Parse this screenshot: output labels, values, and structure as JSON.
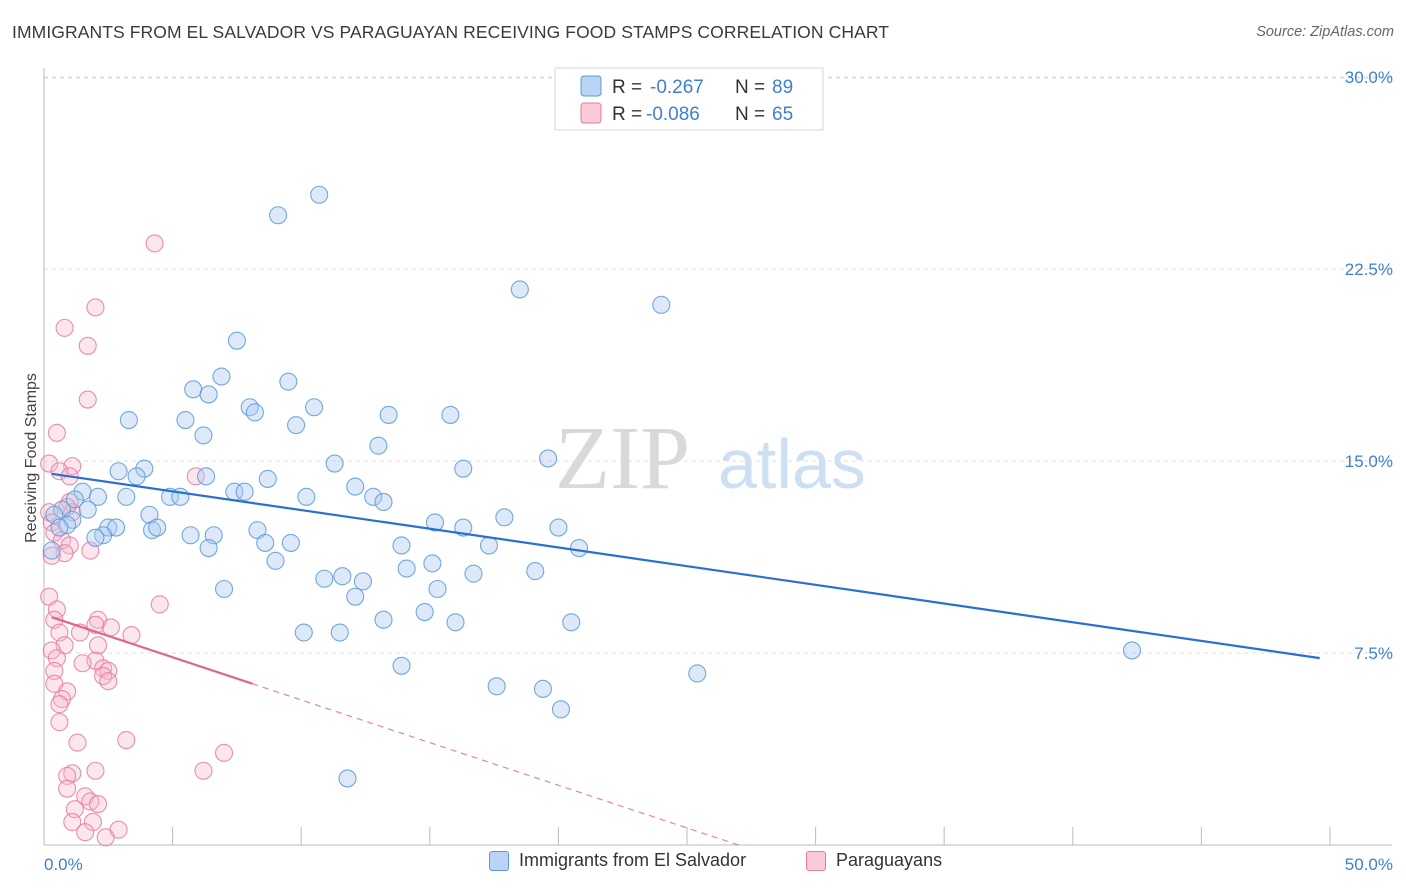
{
  "header": {
    "title": "IMMIGRANTS FROM EL SALVADOR VS PARAGUAYAN RECEIVING FOOD STAMPS CORRELATION CHART",
    "source": "Source: ZipAtlas.com"
  },
  "watermark": {
    "zip": "ZIP",
    "atlas": "atlas"
  },
  "colors": {
    "blue": "#5b9bd5",
    "blue_fill": "#a9c9f0",
    "blue_line": "#2b6fd0",
    "pink": "#e87aa0",
    "pink_fill": "#f6b6cb",
    "pink_line": "#e0648f",
    "tick_label": "#3f7fd0",
    "grid": "#dddddd"
  },
  "legend": {
    "series": [
      {
        "r_label": "R =",
        "r_value": "-0.267",
        "n_label": "N =",
        "n_value": "89"
      },
      {
        "r_label": "R =",
        "r_value": "-0.086",
        "n_label": "N =",
        "n_value": "65"
      }
    ]
  },
  "bottom_legend": {
    "items": [
      {
        "label": "Immigrants from El Salvador"
      },
      {
        "label": "Paraguayans"
      }
    ]
  },
  "chart_data": {
    "type": "scatter",
    "title": "IMMIGRANTS FROM EL SALVADOR VS PARAGUAYAN RECEIVING FOOD STAMPS CORRELATION CHART",
    "xlabel": "",
    "ylabel": "Receiving Food Stamps",
    "xlim": [
      0,
      50
    ],
    "ylim": [
      0,
      31
    ],
    "x_tick_labels": [
      "0.0%",
      "50.0%"
    ],
    "y_ticks": [
      7.5,
      15.0,
      22.5,
      30.0
    ],
    "y_tick_labels": [
      "7.5%",
      "15.0%",
      "22.5%",
      "30.0%"
    ],
    "grid": true,
    "series": [
      {
        "name": "Immigrants from El Salvador",
        "r": -0.267,
        "n": 89,
        "trend": {
          "x": [
            0.3,
            49.6
          ],
          "y": [
            14.5,
            7.3
          ],
          "dashed_to": null
        },
        "points": [
          [
            10.7,
            25.4
          ],
          [
            9.1,
            24.6
          ],
          [
            18.5,
            21.7
          ],
          [
            24,
            21.1
          ],
          [
            7.5,
            19.7
          ],
          [
            9.5,
            18.1
          ],
          [
            6.9,
            18.3
          ],
          [
            5.8,
            17.8
          ],
          [
            6.4,
            17.6
          ],
          [
            8.0,
            17.1
          ],
          [
            10.5,
            17.1
          ],
          [
            13.4,
            16.8
          ],
          [
            15.8,
            16.8
          ],
          [
            8.2,
            16.9
          ],
          [
            3.3,
            16.6
          ],
          [
            5.5,
            16.6
          ],
          [
            9.8,
            16.4
          ],
          [
            6.2,
            16.0
          ],
          [
            13.0,
            15.6
          ],
          [
            19.6,
            15.1
          ],
          [
            11.3,
            14.9
          ],
          [
            16.3,
            14.7
          ],
          [
            3.9,
            14.7
          ],
          [
            2.9,
            14.6
          ],
          [
            3.6,
            14.4
          ],
          [
            8.7,
            14.3
          ],
          [
            6.3,
            14.4
          ],
          [
            12.1,
            14.0
          ],
          [
            7.4,
            13.8
          ],
          [
            7.8,
            13.8
          ],
          [
            1.5,
            13.8
          ],
          [
            1.2,
            13.5
          ],
          [
            2.1,
            13.6
          ],
          [
            3.2,
            13.6
          ],
          [
            4.9,
            13.6
          ],
          [
            5.3,
            13.6
          ],
          [
            10.2,
            13.6
          ],
          [
            12.8,
            13.6
          ],
          [
            13.2,
            13.4
          ],
          [
            0.7,
            13.1
          ],
          [
            0.4,
            12.9
          ],
          [
            1.1,
            12.7
          ],
          [
            0.9,
            12.5
          ],
          [
            1.7,
            13.1
          ],
          [
            4.1,
            12.9
          ],
          [
            17.9,
            12.8
          ],
          [
            15.2,
            12.6
          ],
          [
            0.6,
            12.4
          ],
          [
            2.5,
            12.4
          ],
          [
            2.8,
            12.4
          ],
          [
            4.2,
            12.3
          ],
          [
            4.4,
            12.4
          ],
          [
            16.3,
            12.4
          ],
          [
            20.0,
            12.4
          ],
          [
            8.3,
            12.3
          ],
          [
            5.7,
            12.1
          ],
          [
            2.3,
            12.1
          ],
          [
            6.6,
            12.1
          ],
          [
            2.0,
            12.0
          ],
          [
            8.6,
            11.8
          ],
          [
            9.6,
            11.8
          ],
          [
            13.9,
            11.7
          ],
          [
            17.3,
            11.7
          ],
          [
            20.8,
            11.6
          ],
          [
            6.4,
            11.6
          ],
          [
            0.3,
            11.5
          ],
          [
            9.0,
            11.1
          ],
          [
            15.1,
            11.0
          ],
          [
            14.1,
            10.8
          ],
          [
            19.1,
            10.7
          ],
          [
            16.7,
            10.6
          ],
          [
            11.6,
            10.5
          ],
          [
            10.9,
            10.4
          ],
          [
            12.4,
            10.3
          ],
          [
            7.0,
            10.0
          ],
          [
            15.3,
            10.0
          ],
          [
            12.1,
            9.7
          ],
          [
            14.8,
            9.1
          ],
          [
            13.2,
            8.8
          ],
          [
            16.0,
            8.7
          ],
          [
            20.5,
            8.7
          ],
          [
            10.1,
            8.3
          ],
          [
            11.5,
            8.3
          ],
          [
            42.3,
            7.6
          ],
          [
            13.9,
            7.0
          ],
          [
            25.4,
            6.7
          ],
          [
            17.6,
            6.2
          ],
          [
            19.4,
            6.1
          ],
          [
            20.1,
            5.3
          ],
          [
            11.8,
            2.6
          ]
        ]
      },
      {
        "name": "Paraguayans",
        "r": -0.086,
        "n": 65,
        "trend": {
          "x": [
            0.3,
            8.1
          ],
          "y": [
            8.9,
            6.3
          ],
          "dashed_to": [
            27.0,
            0.0
          ]
        },
        "points": [
          [
            4.3,
            23.5
          ],
          [
            2.0,
            21.0
          ],
          [
            0.8,
            20.2
          ],
          [
            1.7,
            19.5
          ],
          [
            1.7,
            17.4
          ],
          [
            0.5,
            16.1
          ],
          [
            0.2,
            14.9
          ],
          [
            1.1,
            14.8
          ],
          [
            0.6,
            14.6
          ],
          [
            1.0,
            14.4
          ],
          [
            5.9,
            14.4
          ],
          [
            1.0,
            13.4
          ],
          [
            1.1,
            13.0
          ],
          [
            0.9,
            13.2
          ],
          [
            0.2,
            13.0
          ],
          [
            0.3,
            12.6
          ],
          [
            0.4,
            12.2
          ],
          [
            0.7,
            11.9
          ],
          [
            1.0,
            11.7
          ],
          [
            1.8,
            11.5
          ],
          [
            0.8,
            11.4
          ],
          [
            0.3,
            11.3
          ],
          [
            0.2,
            9.7
          ],
          [
            0.5,
            9.2
          ],
          [
            4.5,
            9.4
          ],
          [
            0.4,
            8.8
          ],
          [
            2.1,
            8.8
          ],
          [
            2.6,
            8.5
          ],
          [
            2.0,
            8.6
          ],
          [
            0.6,
            8.3
          ],
          [
            1.4,
            8.3
          ],
          [
            3.4,
            8.2
          ],
          [
            0.8,
            7.8
          ],
          [
            2.1,
            7.8
          ],
          [
            0.3,
            7.6
          ],
          [
            0.5,
            7.3
          ],
          [
            2.0,
            7.2
          ],
          [
            1.5,
            7.1
          ],
          [
            2.3,
            6.9
          ],
          [
            2.5,
            6.8
          ],
          [
            0.4,
            6.8
          ],
          [
            2.3,
            6.6
          ],
          [
            2.5,
            6.4
          ],
          [
            0.4,
            6.3
          ],
          [
            0.9,
            6.0
          ],
          [
            0.7,
            5.7
          ],
          [
            0.6,
            5.5
          ],
          [
            0.6,
            4.8
          ],
          [
            3.2,
            4.1
          ],
          [
            1.3,
            4.0
          ],
          [
            7.0,
            3.6
          ],
          [
            6.2,
            2.9
          ],
          [
            2.0,
            2.9
          ],
          [
            1.1,
            2.8
          ],
          [
            0.9,
            2.7
          ],
          [
            0.9,
            2.2
          ],
          [
            1.6,
            1.9
          ],
          [
            1.8,
            1.7
          ],
          [
            2.1,
            1.6
          ],
          [
            1.2,
            1.4
          ],
          [
            1.1,
            0.9
          ],
          [
            1.9,
            0.9
          ],
          [
            1.6,
            0.5
          ],
          [
            2.4,
            0.3
          ],
          [
            2.9,
            0.6
          ]
        ]
      }
    ]
  }
}
